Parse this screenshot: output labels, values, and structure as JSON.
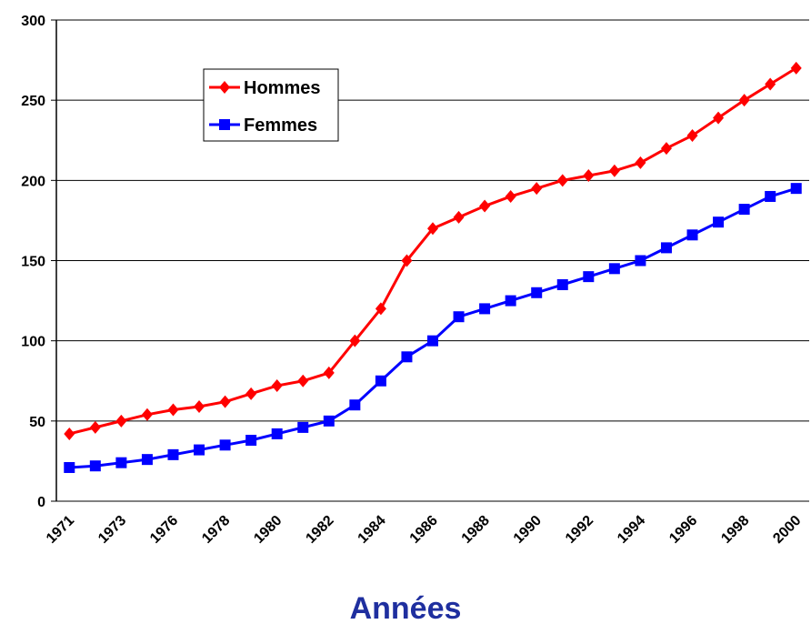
{
  "chart_data": {
    "type": "line",
    "x_label": "Années",
    "categories": [
      "1971",
      null,
      "1973",
      null,
      "1976",
      null,
      "1978",
      null,
      "1980",
      null,
      "1982",
      null,
      "1984",
      null,
      "1986",
      null,
      "1988",
      null,
      "1990",
      null,
      "1992",
      null,
      "1994",
      null,
      "1996",
      null,
      "1998",
      null,
      "2000"
    ],
    "series": [
      {
        "name": "Hommes",
        "color": "#ff0000",
        "marker": "diamond",
        "values": [
          42,
          46,
          50,
          54,
          57,
          59,
          62,
          67,
          72,
          75,
          80,
          100,
          120,
          150,
          170,
          177,
          184,
          190,
          195,
          200,
          203,
          206,
          211,
          220,
          228,
          239,
          250,
          260,
          270
        ]
      },
      {
        "name": "Femmes",
        "color": "#0000ff",
        "marker": "square",
        "values": [
          21,
          22,
          24,
          26,
          29,
          32,
          35,
          38,
          42,
          46,
          50,
          60,
          75,
          90,
          100,
          115,
          120,
          125,
          130,
          135,
          140,
          145,
          150,
          158,
          166,
          174,
          182,
          190,
          195
        ]
      }
    ],
    "ylim": [
      0,
      300
    ],
    "yticks": [
      0,
      50,
      100,
      150,
      200,
      250,
      300
    ],
    "grid": true
  }
}
